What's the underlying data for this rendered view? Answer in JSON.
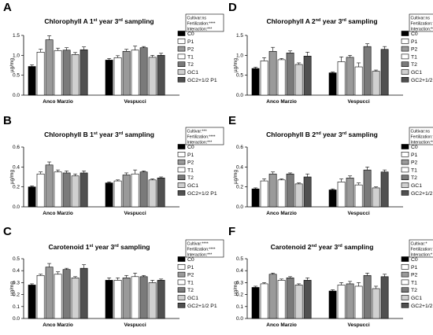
{
  "figure": {
    "title": ""
  },
  "legend_items": [
    {
      "label": "C0",
      "color": "#000000"
    },
    {
      "label": "P1",
      "color": "#ffffff"
    },
    {
      "label": "P2",
      "color": "#9a9a9a"
    },
    {
      "label": "T1",
      "color": "#ffffff"
    },
    {
      "label": "T2",
      "color": "#7a7a7a"
    },
    {
      "label": "GC1",
      "color": "#d0d0d0"
    },
    {
      "label": "GC2+1/2 P1",
      "color": "#505050"
    }
  ],
  "chart_data": [
    {
      "type": "bar",
      "letter": "A",
      "title": "Chlorophyll A 1st year 3rd sampling",
      "ylabel": "µg/mg",
      "ylim": [
        0,
        1.5
      ],
      "yticks": [
        "0.0",
        "0.5",
        "1.0",
        "1.5"
      ],
      "ytick_values": [
        0,
        0.5,
        1,
        1.5
      ],
      "categories": [
        "Anco Marzio",
        "Vespucci"
      ],
      "stats": [
        "Cultivar:ns",
        "Fertilization:****",
        "Interaction:***"
      ],
      "series": [
        {
          "name": "C0",
          "values": [
            0.72,
            0.88
          ],
          "errors": [
            0.04,
            0.04
          ]
        },
        {
          "name": "P1",
          "values": [
            1.08,
            0.94
          ],
          "errors": [
            0.07,
            0.05
          ]
        },
        {
          "name": "P2",
          "values": [
            1.39,
            1.1
          ],
          "errors": [
            0.1,
            0.05
          ]
        },
        {
          "name": "T1",
          "values": [
            1.12,
            1.13
          ],
          "errors": [
            0.06,
            0.1
          ]
        },
        {
          "name": "T2",
          "values": [
            1.13,
            1.19
          ],
          "errors": [
            0.06,
            0.03
          ]
        },
        {
          "name": "GC1",
          "values": [
            1.02,
            0.95
          ],
          "errors": [
            0.05,
            0.05
          ]
        },
        {
          "name": "GC2+1/2 P1",
          "values": [
            1.14,
            1.0
          ],
          "errors": [
            0.07,
            0.05
          ]
        }
      ]
    },
    {
      "type": "bar",
      "letter": "D",
      "title": "Chlorophyll A 2nd year 3rd sampling",
      "ylabel": "µg/mg",
      "ylim": [
        0,
        1.5
      ],
      "yticks": [
        "0.0",
        "0.5",
        "1.0",
        "1.5"
      ],
      "ytick_values": [
        0,
        0.5,
        1,
        1.5
      ],
      "categories": [
        "Anco Marzio",
        "Vespucci"
      ],
      "stats": [
        "Cultivar:ns",
        "Fertilization:****",
        "Interaction:**"
      ],
      "series": [
        {
          "name": "C0",
          "values": [
            0.67,
            0.56
          ],
          "errors": [
            0.03,
            0.02
          ]
        },
        {
          "name": "P1",
          "values": [
            0.86,
            0.84
          ],
          "errors": [
            0.08,
            0.12
          ]
        },
        {
          "name": "P2",
          "values": [
            1.1,
            0.95
          ],
          "errors": [
            0.1,
            0.05
          ]
        },
        {
          "name": "T1",
          "values": [
            0.89,
            0.71
          ],
          "errors": [
            0.03,
            0.1
          ]
        },
        {
          "name": "T2",
          "values": [
            1.06,
            1.22
          ],
          "errors": [
            0.05,
            0.07
          ]
        },
        {
          "name": "GC1",
          "values": [
            0.77,
            0.6
          ],
          "errors": [
            0.04,
            0.03
          ]
        },
        {
          "name": "GC2+1/2 P1",
          "values": [
            0.98,
            1.15
          ],
          "errors": [
            0.1,
            0.07
          ]
        }
      ]
    },
    {
      "type": "bar",
      "letter": "B",
      "title": "Chlorophyll B 1st year 3rd sampling",
      "ylabel": "µg/mg",
      "ylim": [
        0,
        0.6
      ],
      "yticks": [
        "0.0",
        "0.2",
        "0.4",
        "0.6"
      ],
      "ytick_values": [
        0,
        0.2,
        0.4,
        0.6
      ],
      "categories": [
        "Anco Marzio",
        "Vespucci"
      ],
      "stats": [
        "Cultivar:***",
        "Fertilization:****",
        "Interaction:***"
      ],
      "series": [
        {
          "name": "C0",
          "values": [
            0.2,
            0.24
          ],
          "errors": [
            0.01,
            0.01
          ]
        },
        {
          "name": "P1",
          "values": [
            0.33,
            0.26
          ],
          "errors": [
            0.02,
            0.01
          ]
        },
        {
          "name": "P2",
          "values": [
            0.42,
            0.32
          ],
          "errors": [
            0.03,
            0.02
          ]
        },
        {
          "name": "T1",
          "values": [
            0.35,
            0.33
          ],
          "errors": [
            0.02,
            0.04
          ]
        },
        {
          "name": "T2",
          "values": [
            0.34,
            0.35
          ],
          "errors": [
            0.02,
            0.01
          ]
        },
        {
          "name": "GC1",
          "values": [
            0.31,
            0.27
          ],
          "errors": [
            0.02,
            0.01
          ]
        },
        {
          "name": "GC2+1/2 P1",
          "values": [
            0.34,
            0.29
          ],
          "errors": [
            0.02,
            0.01
          ]
        }
      ]
    },
    {
      "type": "bar",
      "letter": "E",
      "title": "Chlorophyll B 2nd year 3rd sampling",
      "ylabel": "µg/mg",
      "ylim": [
        0,
        0.6
      ],
      "yticks": [
        "0.0",
        "0.2",
        "0.4",
        "0.6"
      ],
      "ytick_values": [
        0,
        0.2,
        0.4,
        0.6
      ],
      "categories": [
        "Anco Marzio",
        "Vespucci"
      ],
      "stats": [
        "Cultivar:ns",
        "Fertilization:****",
        "Interaction:**"
      ],
      "series": [
        {
          "name": "C0",
          "values": [
            0.18,
            0.17
          ],
          "errors": [
            0.01,
            0.01
          ]
        },
        {
          "name": "P1",
          "values": [
            0.26,
            0.25
          ],
          "errors": [
            0.02,
            0.03
          ]
        },
        {
          "name": "P2",
          "values": [
            0.33,
            0.29
          ],
          "errors": [
            0.02,
            0.02
          ]
        },
        {
          "name": "T1",
          "values": [
            0.27,
            0.22
          ],
          "errors": [
            0.01,
            0.02
          ]
        },
        {
          "name": "T2",
          "values": [
            0.33,
            0.37
          ],
          "errors": [
            0.01,
            0.03
          ]
        },
        {
          "name": "GC1",
          "values": [
            0.23,
            0.19
          ],
          "errors": [
            0.01,
            0.01
          ]
        },
        {
          "name": "GC2+1/2 P1",
          "values": [
            0.3,
            0.35
          ],
          "errors": [
            0.03,
            0.02
          ]
        }
      ]
    },
    {
      "type": "bar",
      "letter": "C",
      "title": "Carotenoid 1st year 3rd sampling",
      "ylabel": "µg/mg",
      "ylim": [
        0,
        0.5
      ],
      "yticks": [
        "0.0",
        "0.1",
        "0.2",
        "0.3",
        "0.4",
        "0.5"
      ],
      "ytick_values": [
        0,
        0.1,
        0.2,
        0.3,
        0.4,
        0.5
      ],
      "categories": [
        "Anco Marzio",
        "Vespucci"
      ],
      "stats": [
        "Cultivar:****",
        "Fertilization:****",
        "Interaction:***"
      ],
      "series": [
        {
          "name": "C0",
          "values": [
            0.28,
            0.32
          ],
          "errors": [
            0.01,
            0.02
          ]
        },
        {
          "name": "P1",
          "values": [
            0.36,
            0.32
          ],
          "errors": [
            0.01,
            0.02
          ]
        },
        {
          "name": "P2",
          "values": [
            0.43,
            0.34
          ],
          "errors": [
            0.03,
            0.02
          ]
        },
        {
          "name": "T1",
          "values": [
            0.37,
            0.35
          ],
          "errors": [
            0.02,
            0.03
          ]
        },
        {
          "name": "T2",
          "values": [
            0.41,
            0.35
          ],
          "errors": [
            0.01,
            0.01
          ]
        },
        {
          "name": "GC1",
          "values": [
            0.34,
            0.3
          ],
          "errors": [
            0.01,
            0.02
          ]
        },
        {
          "name": "GC2+1/2 P1",
          "values": [
            0.42,
            0.32
          ],
          "errors": [
            0.03,
            0.01
          ]
        }
      ]
    },
    {
      "type": "bar",
      "letter": "F",
      "title": "Carotenoid 2nd year 3rd sampling",
      "ylabel": "µg/mg",
      "ylim": [
        0,
        0.5
      ],
      "yticks": [
        "0.0",
        "0.1",
        "0.2",
        "0.3",
        "0.4",
        "0.5"
      ],
      "ytick_values": [
        0,
        0.1,
        0.2,
        0.3,
        0.4,
        0.5
      ],
      "categories": [
        "Anco Marzio",
        "Vespucci"
      ],
      "stats": [
        "Cultivar:*",
        "Fertilization:****",
        "Interaction:*"
      ],
      "series": [
        {
          "name": "C0",
          "values": [
            0.26,
            0.23
          ],
          "errors": [
            0.01,
            0.01
          ]
        },
        {
          "name": "P1",
          "values": [
            0.29,
            0.28
          ],
          "errors": [
            0.01,
            0.02
          ]
        },
        {
          "name": "P2",
          "values": [
            0.37,
            0.29
          ],
          "errors": [
            0.01,
            0.02
          ]
        },
        {
          "name": "T1",
          "values": [
            0.32,
            0.27
          ],
          "errors": [
            0.01,
            0.03
          ]
        },
        {
          "name": "T2",
          "values": [
            0.34,
            0.36
          ],
          "errors": [
            0.01,
            0.02
          ]
        },
        {
          "name": "GC1",
          "values": [
            0.28,
            0.25
          ],
          "errors": [
            0.01,
            0.02
          ]
        },
        {
          "name": "GC2+1/2 P1",
          "values": [
            0.32,
            0.35
          ],
          "errors": [
            0.02,
            0.02
          ]
        }
      ]
    }
  ]
}
